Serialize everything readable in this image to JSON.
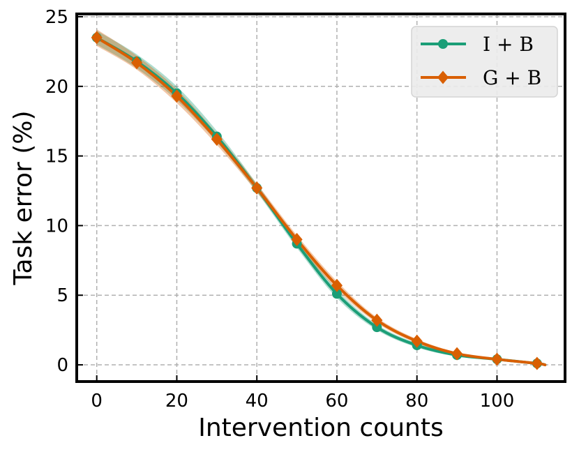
{
  "chart_data": {
    "type": "line",
    "title": "",
    "xlabel": "Intervention counts",
    "ylabel": "Task error (%)",
    "xlim": [
      -5,
      117
    ],
    "ylim": [
      -1.2,
      25.2
    ],
    "xticks": [
      0,
      20,
      40,
      60,
      80,
      100
    ],
    "yticks": [
      0,
      5,
      10,
      15,
      20,
      25
    ],
    "grid": true,
    "legend_position": "top-right",
    "x": [
      0,
      10,
      20,
      30,
      40,
      50,
      60,
      70,
      80,
      90,
      100,
      110
    ],
    "series": [
      {
        "name": "I + B",
        "color": "#1b9e77",
        "marker": "circle",
        "values": [
          23.5,
          21.8,
          19.5,
          16.4,
          12.7,
          8.7,
          5.1,
          2.7,
          1.4,
          0.7,
          0.4,
          0.1
        ],
        "band_halfwidth": [
          0.5,
          0.5,
          0.5,
          0.4,
          0.3,
          0.3,
          0.3,
          0.2,
          0.15,
          0.1,
          0.05,
          0.03
        ]
      },
      {
        "name": "G + B",
        "color": "#d95f02",
        "marker": "diamond",
        "values": [
          23.5,
          21.7,
          19.3,
          16.2,
          12.7,
          9.0,
          5.7,
          3.2,
          1.7,
          0.8,
          0.4,
          0.1
        ],
        "band_halfwidth": [
          0.6,
          0.5,
          0.5,
          0.4,
          0.3,
          0.3,
          0.3,
          0.2,
          0.15,
          0.1,
          0.05,
          0.03
        ]
      }
    ]
  }
}
